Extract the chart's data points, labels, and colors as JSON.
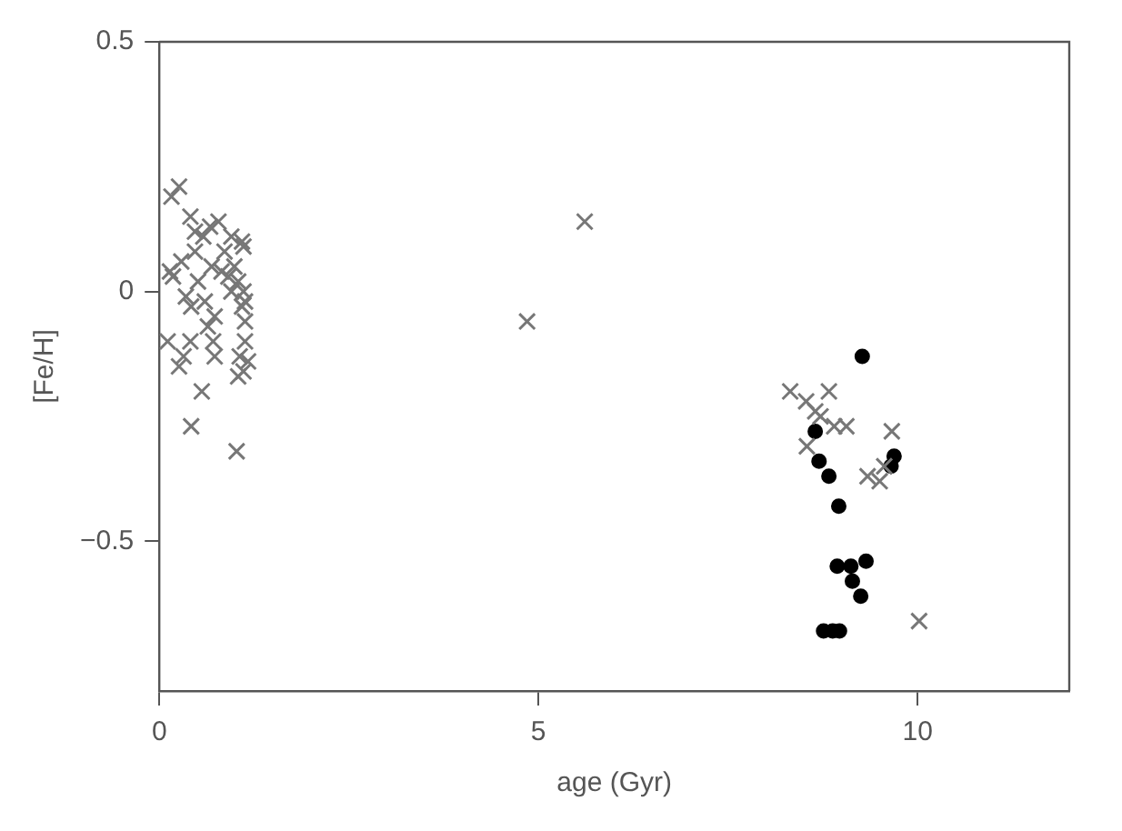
{
  "chart_data": {
    "type": "scatter",
    "xlabel": "age (Gyr)",
    "ylabel": "[Fe/H]",
    "xlim": [
      0,
      12
    ],
    "ylim": [
      -0.8,
      0.5
    ],
    "xticks": [
      0,
      5,
      10
    ],
    "yticks": [
      {
        "value": -0.5,
        "label": "−0.5"
      },
      0,
      0.5
    ],
    "grid": false,
    "legend": false,
    "series": [
      {
        "color": "#777777",
        "marker": "cross",
        "x": [
          0.26,
          0.16,
          0.41,
          0.58,
          0.78,
          0.95,
          1.09,
          1.11,
          0.14,
          0.29,
          0.47,
          0.69,
          0.82,
          0.91,
          1.04,
          1.11,
          0.95,
          0.35,
          0.42,
          0.73,
          1.09,
          1.13,
          0.64,
          0.11,
          0.41,
          0.71,
          1.13,
          0.32,
          0.73,
          1.06,
          1.17,
          1.04,
          0.56,
          0.42,
          1.02,
          0.18,
          0.51,
          0.86,
          0.99,
          1.13,
          0.26,
          1.11,
          0.6,
          0.47,
          0.67,
          4.85,
          5.61,
          8.32,
          8.53,
          8.83,
          8.65,
          8.72,
          8.9,
          9.06,
          8.54,
          9.66,
          9.34,
          9.5,
          9.56,
          10.02
        ],
        "values": [
          0.21,
          0.19,
          0.15,
          0.11,
          0.14,
          0.11,
          0.1,
          0.09,
          0.04,
          0.06,
          0.08,
          0.05,
          0.04,
          0.03,
          0.02,
          0.0,
          0.0,
          -0.01,
          -0.03,
          -0.05,
          -0.03,
          -0.06,
          -0.07,
          -0.1,
          -0.1,
          -0.1,
          -0.1,
          -0.13,
          -0.13,
          -0.13,
          -0.14,
          -0.17,
          -0.2,
          -0.27,
          -0.32,
          0.03,
          0.02,
          0.08,
          0.05,
          -0.02,
          -0.15,
          -0.16,
          -0.02,
          0.12,
          0.13,
          -0.06,
          0.14,
          -0.2,
          -0.22,
          -0.2,
          -0.24,
          -0.25,
          -0.27,
          -0.27,
          -0.31,
          -0.28,
          -0.37,
          -0.38,
          -0.35,
          -0.66
        ]
      },
      {
        "color": "#000000",
        "marker": "circle",
        "x": [
          9.27,
          8.65,
          8.7,
          8.83,
          8.96,
          8.94,
          9.12,
          9.32,
          9.14,
          9.25,
          8.76,
          8.88,
          8.97,
          9.69,
          9.65
        ],
        "values": [
          -0.13,
          -0.28,
          -0.34,
          -0.37,
          -0.43,
          -0.55,
          -0.55,
          -0.54,
          -0.58,
          -0.61,
          -0.68,
          -0.68,
          -0.68,
          -0.33,
          -0.35
        ]
      }
    ]
  }
}
